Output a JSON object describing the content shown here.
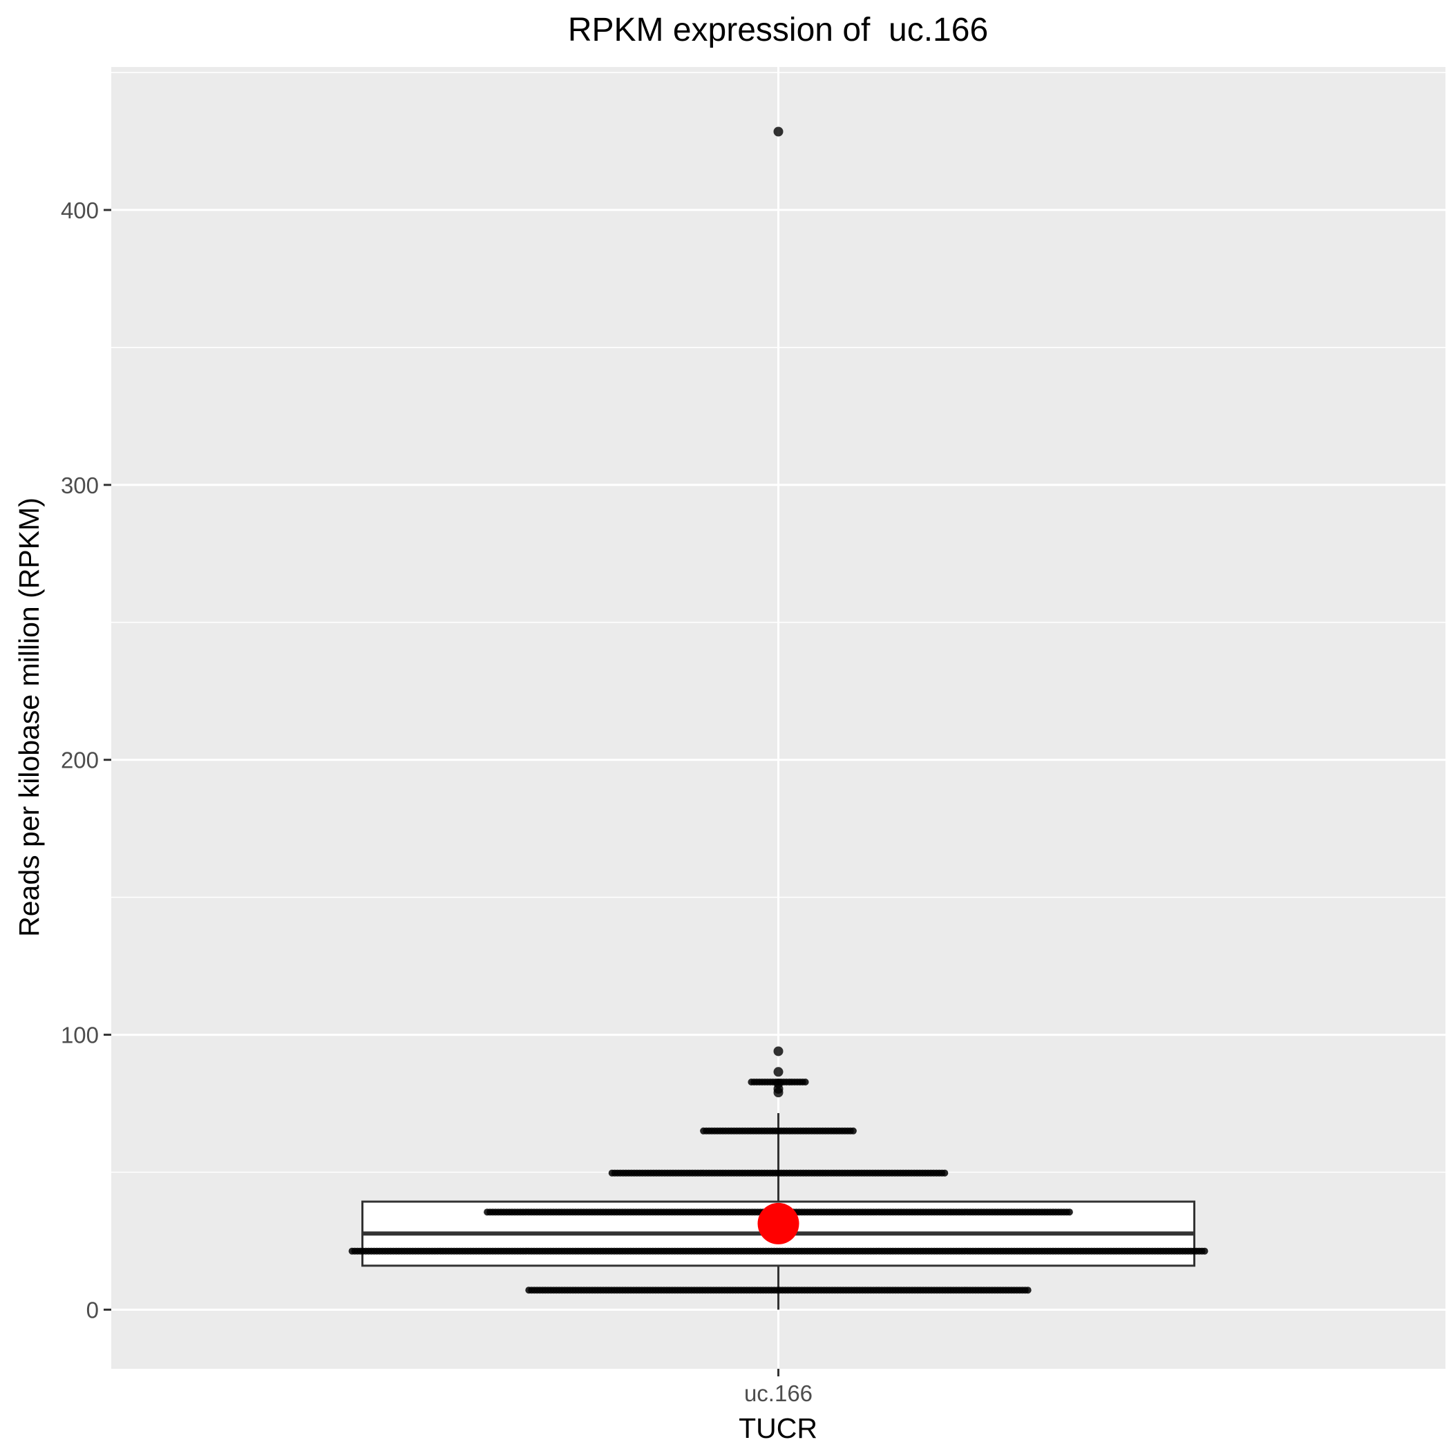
{
  "chart_data": {
    "type": "box",
    "title": "RPKM expression of  uc.166",
    "xlabel": "TUCR",
    "ylabel": "Reads per kilobase million (RPKM)",
    "categories": [
      "uc.166"
    ],
    "ylim": [
      -21.5,
      452
    ],
    "y_ticks": [
      0,
      100,
      200,
      300,
      400
    ],
    "y_tick_labels": [
      "0",
      "100",
      "200",
      "300",
      "400"
    ],
    "grid": true,
    "box": {
      "q1": 16.0,
      "median": 27.7,
      "q3": 39.3,
      "whisker_low": 0,
      "whisker_high": 71.5
    },
    "mean": 31.3,
    "outliers": [
      94.0,
      86.5,
      82.3,
      80.3,
      79.0,
      428.5
    ],
    "jitter_rows": [
      {
        "y": 7.1,
        "spread": 0.24
      },
      {
        "y": 21.3,
        "spread": 0.41
      },
      {
        "y": 35.5,
        "spread": 0.28
      },
      {
        "y": 49.7,
        "spread": 0.16
      },
      {
        "y": 65.0,
        "spread": 0.072
      },
      {
        "y": 82.8,
        "spread": 0.026
      }
    ],
    "colors": {
      "panel": "#EBEBEB",
      "grid": "#FFFFFF",
      "box_fill": "#FFFFFF",
      "box_line": "#333333",
      "points": "#000000",
      "mean_point": "#FF0000",
      "text": "#000000",
      "tick_text": "#4D4D4D"
    }
  }
}
